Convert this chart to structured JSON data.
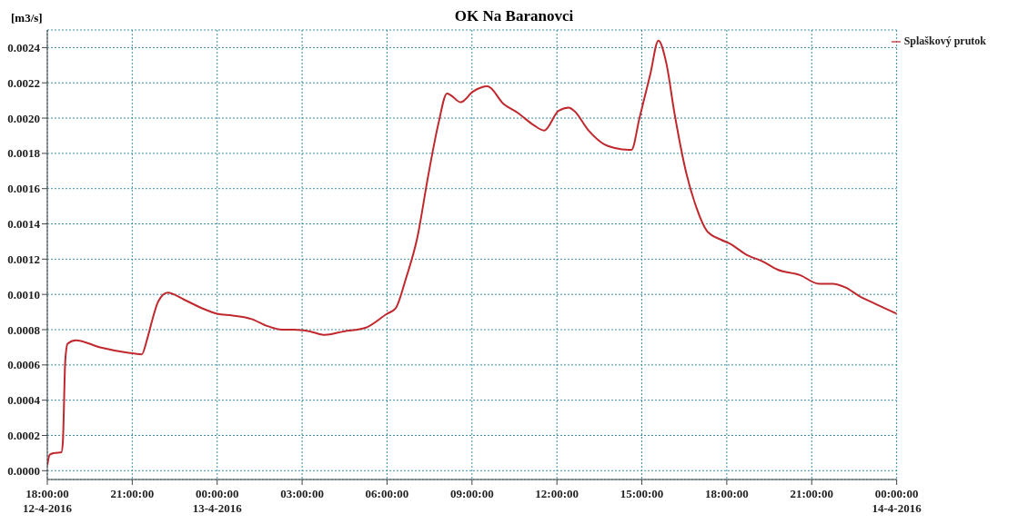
{
  "chart_data": {
    "type": "line",
    "title": "OK Na Baranovci",
    "ylabel": "[m3/s]",
    "x": [
      "2016-04-12T18:00",
      "2016-04-12T18:05",
      "2016-04-12T18:15",
      "2016-04-12T18:30",
      "2016-04-12T18:33",
      "2016-04-12T18:38",
      "2016-04-12T18:43",
      "2016-04-12T19:00",
      "2016-04-12T19:52",
      "2016-04-12T20:49",
      "2016-04-12T21:20",
      "2016-04-12T21:32",
      "2016-04-12T21:44",
      "2016-04-12T21:55",
      "2016-04-12T22:15",
      "2016-04-12T22:50",
      "2016-04-12T23:29",
      "2016-04-13T00:00",
      "2016-04-13T00:33",
      "2016-04-13T01:13",
      "2016-04-13T01:47",
      "2016-04-13T02:17",
      "2016-04-13T02:42",
      "2016-04-13T03:17",
      "2016-04-13T03:48",
      "2016-04-13T04:28",
      "2016-04-13T05:14",
      "2016-04-13T06:00",
      "2016-04-13T06:18",
      "2016-04-13T06:40",
      "2016-04-13T07:04",
      "2016-04-13T07:27",
      "2016-04-13T07:49",
      "2016-04-13T08:07",
      "2016-04-13T08:15",
      "2016-04-13T08:36",
      "2016-04-13T09:02",
      "2016-04-13T09:33",
      "2016-04-13T10:07",
      "2016-04-13T10:37",
      "2016-04-13T11:11",
      "2016-04-13T11:33",
      "2016-04-13T12:03",
      "2016-04-13T12:25",
      "2016-04-13T12:37",
      "2016-04-13T13:07",
      "2016-04-13T13:41",
      "2016-04-13T14:03",
      "2016-04-13T14:33",
      "2016-04-13T14:38",
      "2016-04-13T14:55",
      "2016-04-13T15:18",
      "2016-04-13T15:35",
      "2016-04-13T15:52",
      "2016-04-13T16:09",
      "2016-04-13T16:34",
      "2016-04-13T16:56",
      "2016-04-13T17:18",
      "2016-04-13T17:48",
      "2016-04-13T18:05",
      "2016-04-13T18:45",
      "2016-04-13T19:14",
      "2016-04-13T19:48",
      "2016-04-13T20:35",
      "2016-04-13T21:15",
      "2016-04-13T21:44",
      "2016-04-13T22:11",
      "2016-04-13T22:41",
      "2016-04-13T23:20",
      "2016-04-14T00:00"
    ],
    "series": [
      {
        "name": "Splaškový prutok",
        "color": "#c0282d",
        "values": [
          3e-05,
          9e-05,
          0.0001,
          0.000105,
          0.000165,
          0.00062,
          0.00072,
          0.00074,
          0.0007,
          0.00067,
          0.00066,
          0.00075,
          0.00087,
          0.00096,
          0.00101,
          0.00097,
          0.00092,
          0.00089,
          0.00088,
          0.00086,
          0.00082,
          0.0008,
          0.0008,
          0.00079,
          0.00077,
          0.00079,
          0.00081,
          0.00089,
          0.00092,
          0.00109,
          0.00132,
          0.00167,
          0.00197,
          0.00214,
          0.00213,
          0.00209,
          0.00215,
          0.00218,
          0.00208,
          0.00203,
          0.00196,
          0.00193,
          0.00204,
          0.00206,
          0.00204,
          0.00193,
          0.00185,
          0.00183,
          0.00182,
          0.00182,
          0.002,
          0.00225,
          0.00244,
          0.00231,
          0.00203,
          0.00169,
          0.00149,
          0.00136,
          0.00131,
          0.00129,
          0.00122,
          0.00119,
          0.00114,
          0.00111,
          0.00106,
          0.00106,
          0.00104,
          0.00099,
          0.00094,
          0.00089
        ]
      }
    ],
    "xlim": [
      "2016-04-12T18:00",
      "2016-04-14T00:00"
    ],
    "xticks": [
      {
        "value": "2016-04-12T18:00",
        "label": "18:00:00\n12-4-2016"
      },
      {
        "value": "2016-04-12T21:00",
        "label": "21:00:00"
      },
      {
        "value": "2016-04-13T00:00",
        "label": "00:00:00\n13-4-2016"
      },
      {
        "value": "2016-04-13T03:00",
        "label": "03:00:00"
      },
      {
        "value": "2016-04-13T06:00",
        "label": "06:00:00"
      },
      {
        "value": "2016-04-13T09:00",
        "label": "09:00:00"
      },
      {
        "value": "2016-04-13T12:00",
        "label": "12:00:00"
      },
      {
        "value": "2016-04-13T15:00",
        "label": "15:00:00"
      },
      {
        "value": "2016-04-13T18:00",
        "label": "18:00:00"
      },
      {
        "value": "2016-04-13T21:00",
        "label": "21:00:00"
      },
      {
        "value": "2016-04-14T00:00",
        "label": "00:00:00\n14-4-2016"
      }
    ],
    "ylim": [
      -5e-05,
      0.0025
    ],
    "yticks": [
      {
        "value": 0,
        "label": "0.0000"
      },
      {
        "value": 0.0002,
        "label": "0.0002"
      },
      {
        "value": 0.0004,
        "label": "0.0004"
      },
      {
        "value": 0.0006,
        "label": "0.0006"
      },
      {
        "value": 0.0008,
        "label": "0.0008"
      },
      {
        "value": 0.001,
        "label": "0.0010"
      },
      {
        "value": 0.0012,
        "label": "0.0012"
      },
      {
        "value": 0.0014,
        "label": "0.0014"
      },
      {
        "value": 0.0016,
        "label": "0.0016"
      },
      {
        "value": 0.0018,
        "label": "0.0018"
      },
      {
        "value": 0.002,
        "label": "0.0020"
      },
      {
        "value": 0.0022,
        "label": "0.0022"
      },
      {
        "value": 0.0024,
        "label": "0.0024"
      }
    ],
    "grid": true,
    "legend": "top right",
    "marker": "none",
    "line_style": "solid"
  }
}
